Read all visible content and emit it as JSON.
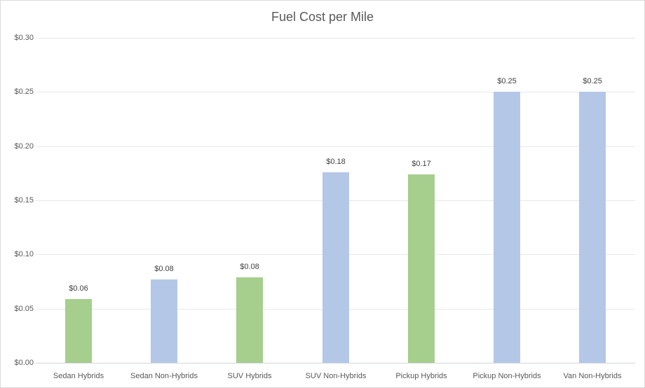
{
  "chart": {
    "title": "Fuel Cost per Mile"
  },
  "chart_data": {
    "type": "bar",
    "title": "Fuel Cost per Mile",
    "xlabel": "",
    "ylabel": "",
    "categories": [
      "Sedan Hybrids",
      "Sedan Non-Hybrids",
      "SUV Hybrids",
      "SUV Non-Hybrids",
      "Pickup Hybrids",
      "Pickup Non-Hybrids",
      "Van Non-Hybrids"
    ],
    "values": [
      0.059,
      0.077,
      0.079,
      0.176,
      0.174,
      0.25,
      0.25
    ],
    "data_labels": [
      "$0.06",
      "$0.08",
      "$0.08",
      "$0.18",
      "$0.17",
      "$0.25",
      "$0.25"
    ],
    "bar_colors": [
      "#A6CE8C",
      "#B4C7E7",
      "#A6CE8C",
      "#B4C7E7",
      "#A6CE8C",
      "#B4C7E7",
      "#B4C7E7"
    ],
    "color_legend": {
      "hybrid_green": "#A6CE8C",
      "non_hybrid_blue": "#B4C7E7"
    },
    "ylim": [
      0,
      0.3
    ],
    "y_ticks": [
      0,
      0.05,
      0.1,
      0.15,
      0.2,
      0.25,
      0.3
    ],
    "y_tick_labels": [
      "$0.00",
      "$0.05",
      "$0.10",
      "$0.15",
      "$0.20",
      "$0.25",
      "$0.30"
    ],
    "grid": true,
    "legend_position": "none",
    "style_colors": {
      "gridline": "#E8E8E8",
      "axis_line": "#CFD5DC",
      "title_text": "#595959",
      "tick_text": "#595959",
      "data_label_text": "#404040",
      "chart_border": "#D9D9D9",
      "background": "#FFFFFF"
    }
  }
}
